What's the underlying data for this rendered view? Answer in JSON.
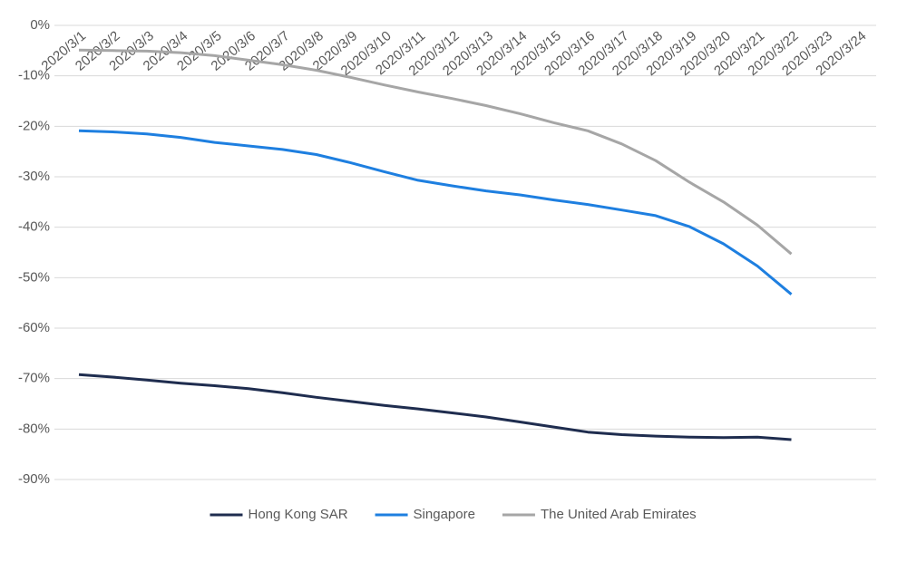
{
  "chart_data": {
    "type": "line",
    "categories": [
      "2020/3/1",
      "2020/3/2",
      "2020/3/3",
      "2020/3/4",
      "2020/3/5",
      "2020/3/6",
      "2020/3/7",
      "2020/3/8",
      "2020/3/9",
      "2020/3/10",
      "2020/3/11",
      "2020/3/12",
      "2020/3/13",
      "2020/3/14",
      "2020/3/15",
      "2020/3/16",
      "2020/3/17",
      "2020/3/18",
      "2020/3/19",
      "2020/3/20",
      "2020/3/21",
      "2020/3/22",
      "2020/3/23",
      "2020/3/24"
    ],
    "series": [
      {
        "name": "Hong Kong SAR",
        "color": "#1f2d4f",
        "values": [
          -69.2,
          -69.7,
          -70.3,
          -70.9,
          -71.4,
          -72.0,
          -72.8,
          -73.7,
          -74.5,
          -75.3,
          -76.0,
          -76.8,
          -77.6,
          -78.6,
          -79.6,
          -80.6,
          -81.1,
          -81.4,
          -81.6,
          -81.7,
          -81.6,
          -82.1,
          null,
          null
        ]
      },
      {
        "name": "Singapore",
        "color": "#1e7fe0",
        "values": [
          -20.9,
          -21.1,
          -21.5,
          -22.2,
          -23.2,
          -23.9,
          -24.6,
          -25.6,
          -27.2,
          -29.0,
          -30.7,
          -31.8,
          -32.8,
          -33.6,
          -34.6,
          -35.5,
          -36.6,
          -37.7,
          -39.9,
          -43.3,
          -47.7,
          -53.3,
          null,
          null
        ]
      },
      {
        "name": "The United Arab Emirates",
        "color": "#a6a6a6",
        "values": [
          -4.9,
          -5.0,
          -5.1,
          -5.4,
          -6.0,
          -6.9,
          -7.8,
          -8.9,
          -10.3,
          -11.8,
          -13.2,
          -14.5,
          -15.9,
          -17.5,
          -19.3,
          -20.9,
          -23.5,
          -26.8,
          -31.1,
          -35.0,
          -39.6,
          -45.3,
          null,
          null
        ]
      }
    ],
    "ylim": [
      -90,
      0
    ],
    "yticks": [
      {
        "value": 0,
        "label": "0%"
      },
      {
        "value": -10,
        "label": "-10%"
      },
      {
        "value": -20,
        "label": "-20%"
      },
      {
        "value": -30,
        "label": "-30%"
      },
      {
        "value": -40,
        "label": "-40%"
      },
      {
        "value": -50,
        "label": "-50%"
      },
      {
        "value": -60,
        "label": "-60%"
      },
      {
        "value": -70,
        "label": "-70%"
      },
      {
        "value": -80,
        "label": "-80%"
      },
      {
        "value": -90,
        "label": "-90%"
      }
    ],
    "grid": true,
    "legend": "bottom"
  }
}
